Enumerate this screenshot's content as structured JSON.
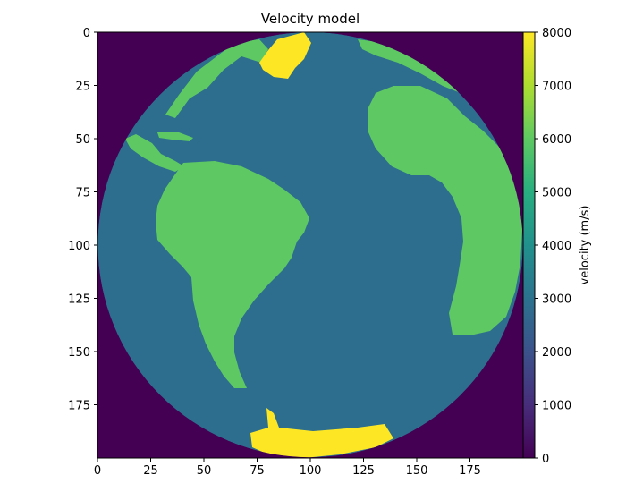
{
  "chart_data": {
    "type": "heatmap",
    "title": "Velocity model",
    "xlabel": "",
    "ylabel": "",
    "xlim": [
      0,
      200
    ],
    "ylim": [
      200,
      0
    ],
    "x_ticks": [
      0,
      25,
      50,
      75,
      100,
      125,
      150,
      175
    ],
    "y_ticks": [
      0,
      25,
      50,
      75,
      100,
      125,
      150,
      175
    ],
    "grid": false,
    "colormap": "viridis",
    "colorbar": {
      "label": "velocity (m/s)",
      "range": [
        0,
        8000
      ],
      "ticks": [
        0,
        1000,
        2000,
        3000,
        4000,
        5000,
        6000,
        7000,
        8000
      ]
    },
    "grid_size": [
      200,
      200
    ],
    "regions": [
      {
        "name": "space",
        "velocity": 0,
        "color": "#440154",
        "description": "outside globe"
      },
      {
        "name": "water",
        "velocity": 3500,
        "color": "#2d6e8e",
        "description": "ocean"
      },
      {
        "name": "land",
        "velocity": 6200,
        "color": "#5ec962",
        "description": "continents"
      },
      {
        "name": "ice",
        "velocity": 8000,
        "color": "#fde725",
        "description": "polar ice"
      }
    ],
    "globe": {
      "center": [
        99,
        99
      ],
      "radius": 99
    }
  }
}
